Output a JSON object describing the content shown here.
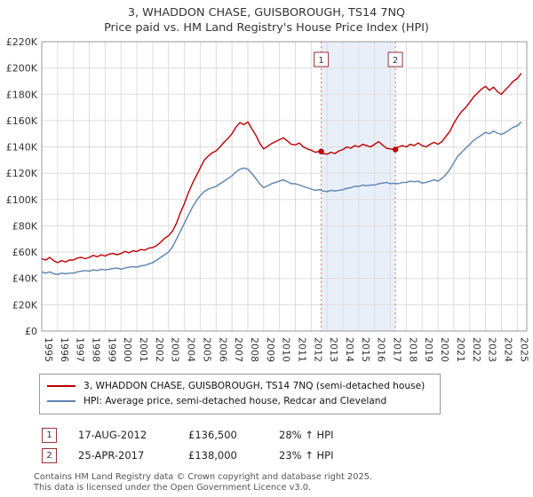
{
  "title": {
    "line1": "3, WHADDON CHASE, GUISBOROUGH, TS14 7NQ",
    "line2": "Price paid vs. HM Land Registry's House Price Index (HPI)"
  },
  "chart_data": {
    "type": "line",
    "title": "3, WHADDON CHASE, GUISBOROUGH, TS14 7NQ — Price paid vs. HPI",
    "x_range": [
      1995,
      2025.6
    ],
    "ylim": [
      0,
      220000
    ],
    "y_tick_step": 20000,
    "y_tick_labels": [
      "£0",
      "£20K",
      "£40K",
      "£60K",
      "£80K",
      "£100K",
      "£120K",
      "£140K",
      "£160K",
      "£180K",
      "£200K",
      "£220K"
    ],
    "x_ticks": [
      1995,
      1996,
      1997,
      1998,
      1999,
      2000,
      2001,
      2002,
      2003,
      2004,
      2005,
      2006,
      2007,
      2008,
      2009,
      2010,
      2011,
      2012,
      2013,
      2014,
      2015,
      2016,
      2017,
      2018,
      2019,
      2020,
      2021,
      2022,
      2023,
      2024,
      2025
    ],
    "x_start": 1995,
    "x_step": 0.25,
    "grid": true,
    "legend_position": "bottom",
    "shade_color": "#e9eff9",
    "shaded_region": [
      2012.63,
      2017.31
    ],
    "sales": [
      {
        "label": "1",
        "x": 2012.63,
        "y": 136500
      },
      {
        "label": "2",
        "x": 2017.31,
        "y": 138000
      }
    ],
    "series": [
      {
        "name": "3, WHADDON CHASE, GUISBOROUGH, TS14 7NQ (semi-detached house)",
        "color": "#bb0000",
        "values": [
          55000,
          54000,
          56000,
          53500,
          52000,
          53500,
          52500,
          54000,
          54000,
          55500,
          56000,
          55000,
          56000,
          57500,
          56500,
          58000,
          57000,
          58500,
          59000,
          58000,
          59000,
          60500,
          59500,
          61000,
          60500,
          62000,
          61500,
          63000,
          63500,
          65000,
          67500,
          70500,
          72500,
          76000,
          82000,
          90000,
          97000,
          105000,
          112000,
          118000,
          124000,
          130000,
          133000,
          135500,
          137000,
          140000,
          143500,
          146500,
          150000,
          155000,
          158500,
          157000,
          159000,
          154000,
          149000,
          143000,
          138500,
          140500,
          142500,
          144000,
          145500,
          147000,
          144500,
          142000,
          141500,
          143000,
          140000,
          138500,
          137500,
          136000,
          136500,
          135000,
          134500,
          136000,
          135000,
          137000,
          138000,
          140000,
          139000,
          141000,
          140000,
          142000,
          141000,
          140000,
          142000,
          144000,
          141500,
          139000,
          138500,
          138000,
          140000,
          141000,
          140000,
          142000,
          141000,
          143000,
          141000,
          140000,
          142000,
          143500,
          142000,
          144000,
          148000,
          152000,
          158000,
          163000,
          167000,
          170000,
          174000,
          178000,
          181000,
          184000,
          186000,
          183000,
          185500,
          182000,
          180000,
          183500,
          186500,
          190000,
          192000,
          196000
        ]
      },
      {
        "name": "HPI: Average price, semi-detached house, Redcar and Cleveland",
        "color": "#5b84b0",
        "values": [
          45000,
          44000,
          45000,
          43500,
          43000,
          44000,
          43500,
          44000,
          44000,
          45000,
          45500,
          46000,
          45500,
          46500,
          46000,
          47000,
          46500,
          47000,
          47500,
          48000,
          47000,
          48000,
          48500,
          49000,
          48500,
          49500,
          50000,
          51000,
          52000,
          54000,
          56000,
          58000,
          60000,
          64000,
          70000,
          76000,
          82000,
          88000,
          94000,
          99000,
          103000,
          106000,
          108000,
          109000,
          110000,
          112000,
          114000,
          116000,
          118000,
          121000,
          123000,
          124000,
          123000,
          120000,
          116000,
          112000,
          109000,
          110500,
          112000,
          113000,
          114000,
          115000,
          113500,
          112000,
          112000,
          111000,
          110000,
          109000,
          108000,
          107000,
          107500,
          106500,
          106000,
          107000,
          106500,
          107000,
          107500,
          108500,
          109000,
          110000,
          110000,
          111000,
          110500,
          111000,
          111000,
          112000,
          112500,
          113000,
          112000,
          112500,
          112000,
          113000,
          113000,
          114000,
          113500,
          114000,
          112500,
          113000,
          114000,
          115000,
          114000,
          116000,
          119000,
          123000,
          128000,
          133000,
          136000,
          139000,
          142000,
          145000,
          147000,
          149000,
          151000,
          150000,
          152000,
          150500,
          149500,
          151000,
          153000,
          155000,
          156000,
          159000
        ]
      }
    ]
  },
  "transactions": [
    {
      "num": "1",
      "date": "17-AUG-2012",
      "price": "£136,500",
      "hpi": "28% ↑ HPI"
    },
    {
      "num": "2",
      "date": "25-APR-2017",
      "price": "£138,000",
      "hpi": "23% ↑ HPI"
    }
  ],
  "footer": {
    "line1": "Contains HM Land Registry data © Crown copyright and database right 2025.",
    "line2": "This data is licensed under the Open Government Licence v3.0."
  }
}
